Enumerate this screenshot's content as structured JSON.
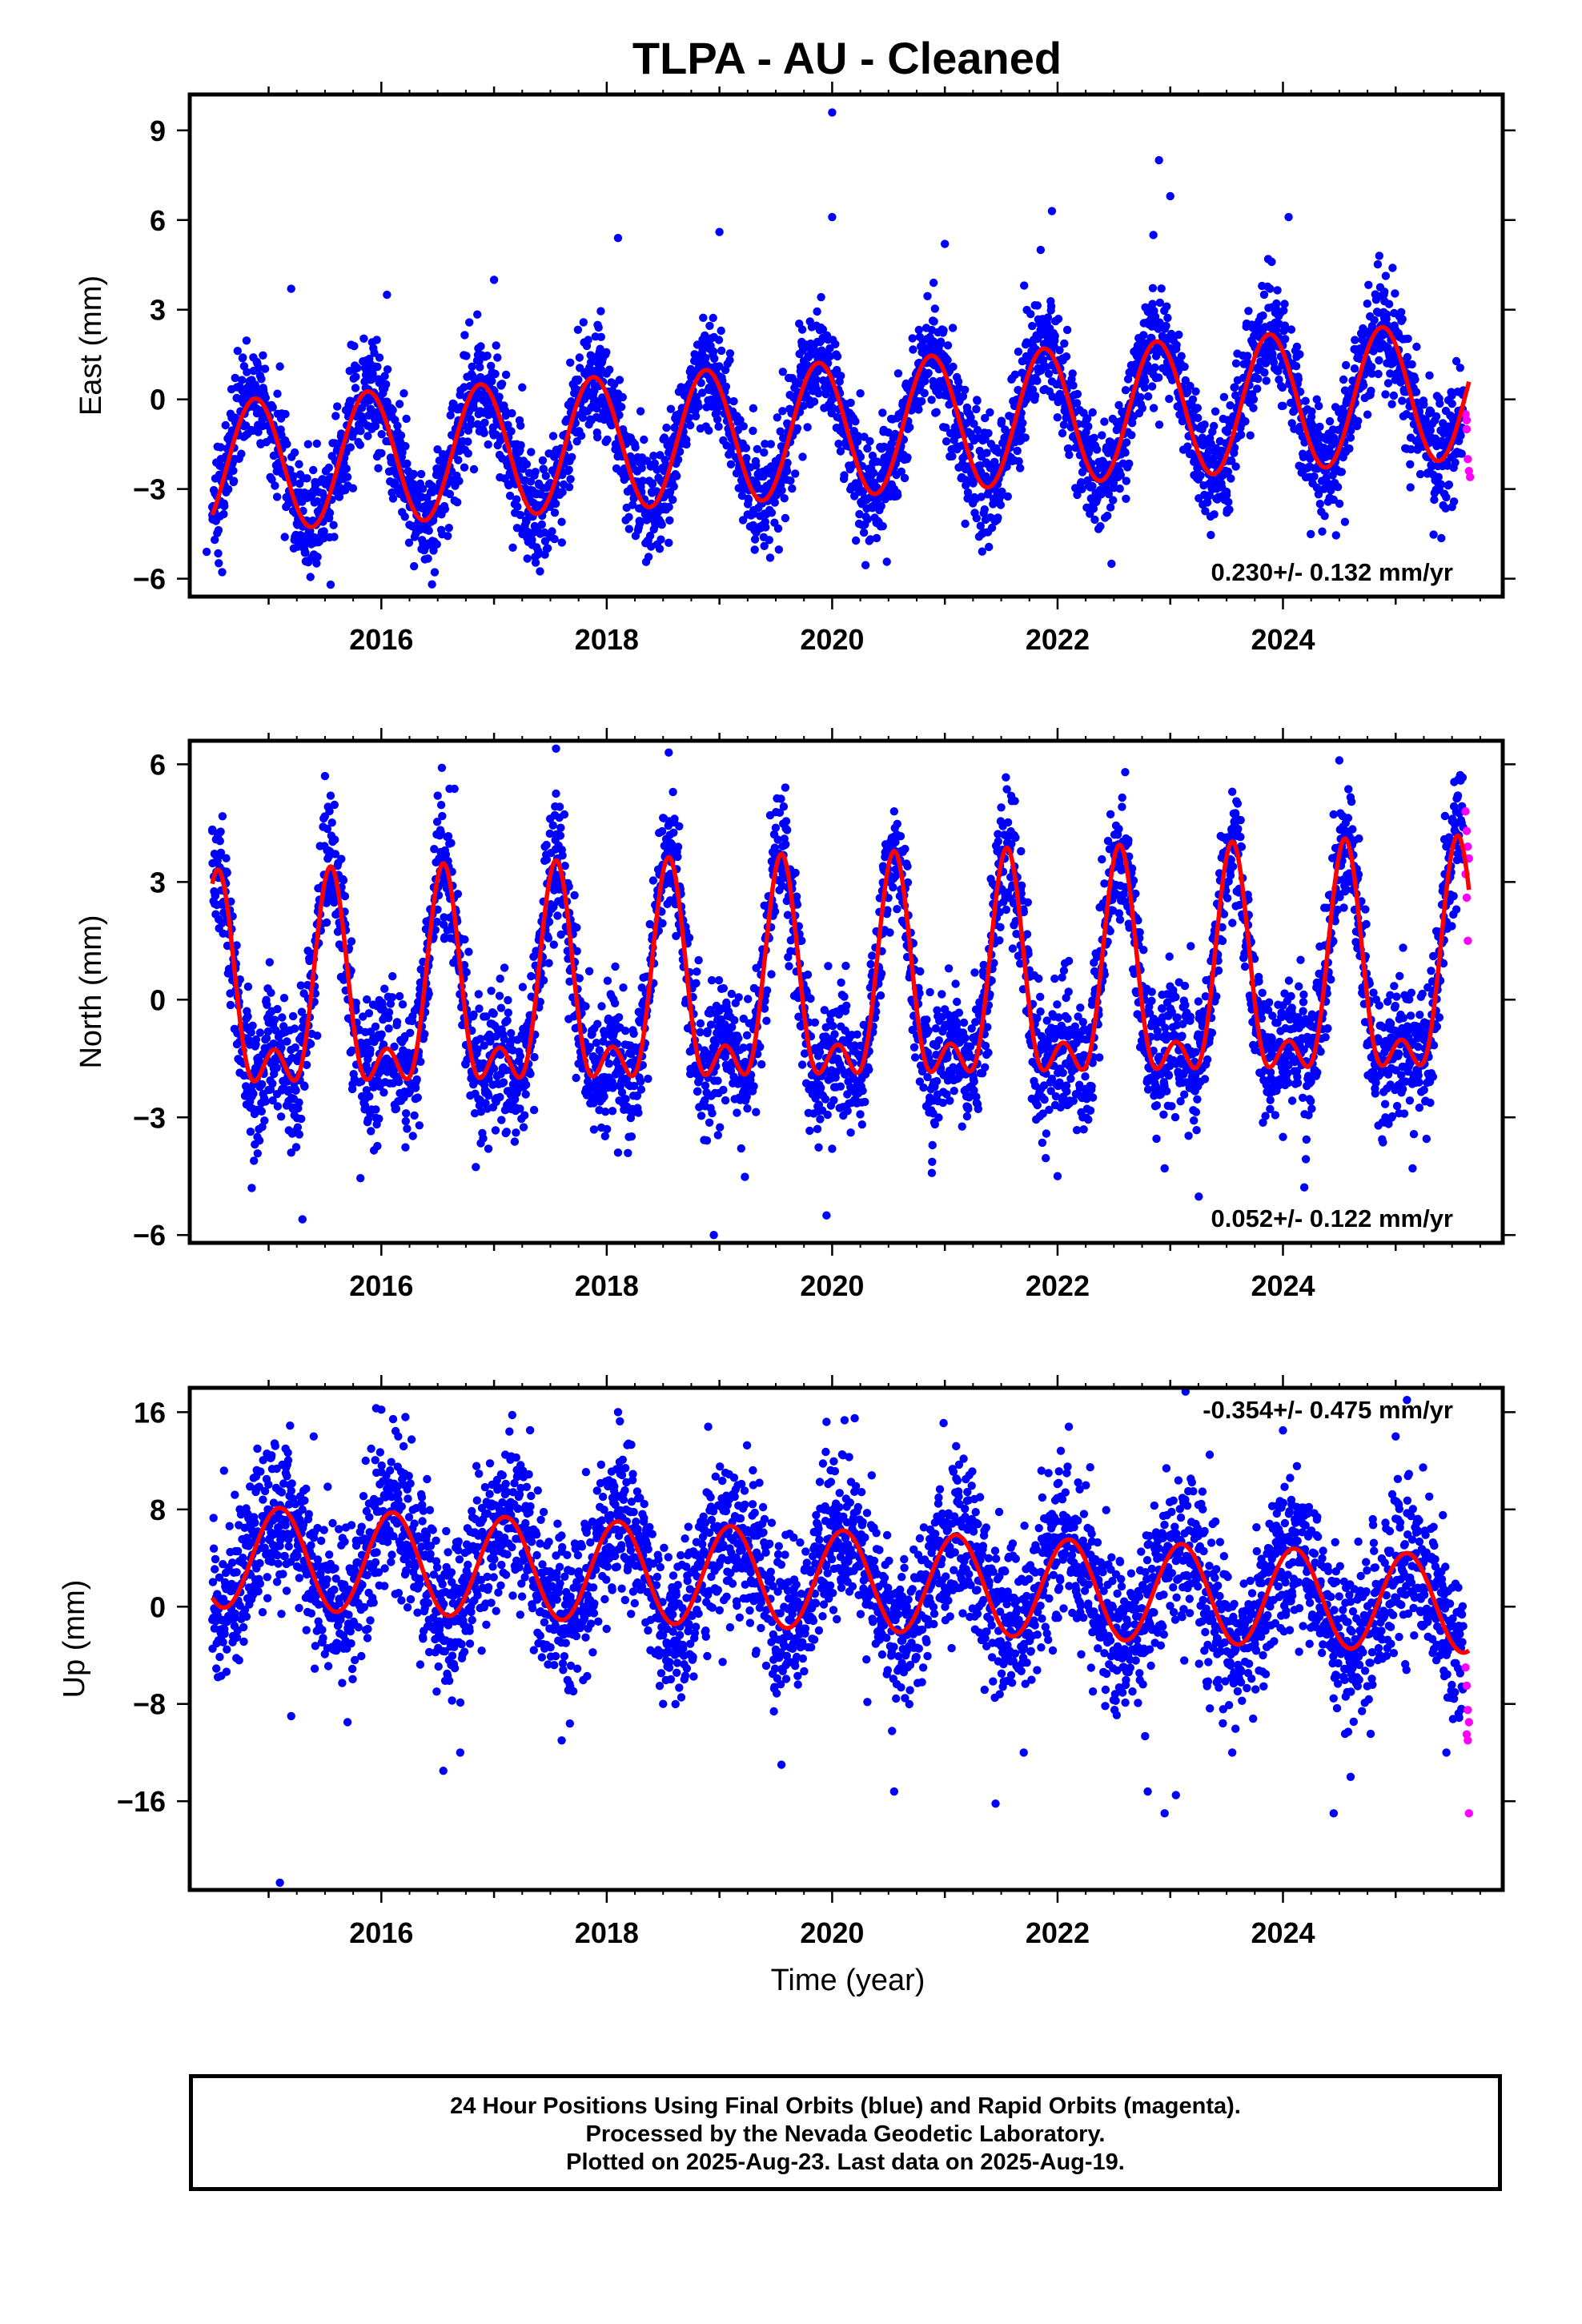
{
  "title": "TLPA  - AU - Cleaned",
  "xlabel": "Time (year)",
  "footer": {
    "line1": "24 Hour Positions Using Final Orbits (blue) and Rapid Orbits (magenta).",
    "line2": "Processed by the Nevada Geodetic Laboratory.",
    "line3": "Plotted on 2025-Aug-23. Last data on 2025-Aug-19."
  },
  "colors": {
    "final_orbits": "#0000ff",
    "rapid_orbits": "#ff00ff",
    "model_fit": "#ff0000",
    "frame": "#000000"
  },
  "chart_data": [
    {
      "type": "scatter",
      "panel": "east",
      "ylabel": "East (mm)",
      "xlim": [
        2014.3,
        2025.95
      ],
      "ylim": [
        -6.6,
        10.2
      ],
      "xticks": [
        2016,
        2018,
        2020,
        2022,
        2024
      ],
      "yticks": [
        -6,
        -3,
        0,
        3,
        6,
        9
      ],
      "rate": "0.230+/- 0.132 mm/yr",
      "rate_position": "bottom-right",
      "fit": {
        "mean_offset": -1.0,
        "trend": 0.23,
        "amp_start": 2.2,
        "amp_end": 2.3,
        "annual_phase_peak": 0.88,
        "semiannual_amp": 0.0,
        "t_start": 2014.5,
        "t_end": 2025.65,
        "end_value": 0.2
      },
      "scatter_sigma": 0.9,
      "final_points": [
        {
          "x": 2014.45,
          "y": -5.1
        },
        {
          "x": 2014.5,
          "y": -3.6
        },
        {
          "x": 2014.6,
          "y": -2.8
        },
        {
          "x": 2014.75,
          "y": -0.4
        },
        {
          "x": 2014.9,
          "y": 1.2
        },
        {
          "x": 2015.1,
          "y": 1.1
        },
        {
          "x": 2015.2,
          "y": 3.7
        },
        {
          "x": 2015.35,
          "y": -1.5
        },
        {
          "x": 2015.5,
          "y": -3.6
        },
        {
          "x": 2015.55,
          "y": -6.2
        },
        {
          "x": 2015.7,
          "y": -2.6
        },
        {
          "x": 2015.9,
          "y": 1.2
        },
        {
          "x": 2016.05,
          "y": 3.5
        },
        {
          "x": 2016.2,
          "y": 0.2
        },
        {
          "x": 2016.45,
          "y": -2.9
        },
        {
          "x": 2016.6,
          "y": -4.3
        },
        {
          "x": 2016.85,
          "y": 1.3
        },
        {
          "x": 2017.0,
          "y": 4.0
        },
        {
          "x": 2017.25,
          "y": 0.4
        },
        {
          "x": 2017.5,
          "y": -2.8
        },
        {
          "x": 2017.6,
          "y": -4.1
        },
        {
          "x": 2017.9,
          "y": 2.1
        },
        {
          "x": 2018.1,
          "y": 5.4
        },
        {
          "x": 2018.3,
          "y": -0.4
        },
        {
          "x": 2018.5,
          "y": -3.1
        },
        {
          "x": 2018.55,
          "y": -4.8
        },
        {
          "x": 2018.85,
          "y": 2.0
        },
        {
          "x": 2019.0,
          "y": 5.6
        },
        {
          "x": 2019.3,
          "y": -0.3
        },
        {
          "x": 2019.45,
          "y": -5.3
        },
        {
          "x": 2019.6,
          "y": -2.4
        },
        {
          "x": 2019.9,
          "y": 2.4
        },
        {
          "x": 2020.0,
          "y": 9.6
        },
        {
          "x": 2020.0,
          "y": 6.1
        },
        {
          "x": 2020.25,
          "y": 0.2
        },
        {
          "x": 2020.5,
          "y": -2.4
        },
        {
          "x": 2020.9,
          "y": 3.9
        },
        {
          "x": 2021.0,
          "y": 5.2
        },
        {
          "x": 2021.45,
          "y": -2.6
        },
        {
          "x": 2021.85,
          "y": 5.0
        },
        {
          "x": 2021.95,
          "y": 6.3
        },
        {
          "x": 2022.45,
          "y": -1.8
        },
        {
          "x": 2022.85,
          "y": 5.5
        },
        {
          "x": 2022.9,
          "y": 8.0
        },
        {
          "x": 2023.0,
          "y": 6.8
        },
        {
          "x": 2023.5,
          "y": -3.2
        },
        {
          "x": 2023.9,
          "y": 4.6
        },
        {
          "x": 2024.05,
          "y": 6.1
        },
        {
          "x": 2024.3,
          "y": 0.0
        },
        {
          "x": 2024.55,
          "y": -4.1
        },
        {
          "x": 2024.9,
          "y": 3.6
        },
        {
          "x": 2025.3,
          "y": 0.8
        },
        {
          "x": 2025.5,
          "y": -3.6
        },
        {
          "x": 2025.6,
          "y": 0.3
        }
      ],
      "rapid_points": [
        {
          "x": 2025.62,
          "y": -0.5
        },
        {
          "x": 2025.63,
          "y": -1.0
        },
        {
          "x": 2025.64,
          "y": -2.0
        },
        {
          "x": 2025.65,
          "y": -2.4
        },
        {
          "x": 2025.66,
          "y": -2.6
        },
        {
          "x": 2025.63,
          "y": -0.7
        }
      ]
    },
    {
      "type": "scatter",
      "panel": "north",
      "ylabel": "North (mm)",
      "xlim": [
        2014.3,
        2025.95
      ],
      "ylim": [
        -6.2,
        6.6
      ],
      "xticks": [
        2016,
        2018,
        2020,
        2022,
        2024
      ],
      "yticks": [
        -6,
        -3,
        0,
        3,
        6
      ],
      "rate": "0.052+/- 0.122 mm/yr",
      "rate_position": "bottom-right",
      "fit": {
        "mean_offset": 0.0,
        "trend": 0.052,
        "amp_start": 2.3,
        "amp_end": 2.6,
        "annual_phase_peak": 0.55,
        "semiannual_amp": 1.3,
        "t_start": 2014.5,
        "t_end": 2025.65,
        "end_value": 2.7
      },
      "scatter_sigma": 0.85,
      "final_points": [
        {
          "x": 2014.5,
          "y": 4.3
        },
        {
          "x": 2014.7,
          "y": 1.2
        },
        {
          "x": 2014.85,
          "y": -4.8
        },
        {
          "x": 2014.9,
          "y": -3.5
        },
        {
          "x": 2015.2,
          "y": -3.9
        },
        {
          "x": 2015.3,
          "y": -5.6
        },
        {
          "x": 2015.5,
          "y": 5.7
        },
        {
          "x": 2015.55,
          "y": 5.2
        },
        {
          "x": 2015.9,
          "y": -2.9
        },
        {
          "x": 2016.5,
          "y": 5.2
        },
        {
          "x": 2016.95,
          "y": -3.8
        },
        {
          "x": 2017.55,
          "y": 6.4
        },
        {
          "x": 2018.1,
          "y": -3.9
        },
        {
          "x": 2018.55,
          "y": 6.3
        },
        {
          "x": 2018.95,
          "y": -6.0
        },
        {
          "x": 2019.45,
          "y": 4.7
        },
        {
          "x": 2019.95,
          "y": -5.5
        },
        {
          "x": 2020.0,
          "y": -3.8
        },
        {
          "x": 2020.55,
          "y": 4.8
        },
        {
          "x": 2021.5,
          "y": 4.9
        },
        {
          "x": 2022.0,
          "y": -4.5
        },
        {
          "x": 2022.6,
          "y": 5.8
        },
        {
          "x": 2022.95,
          "y": -4.3
        },
        {
          "x": 2023.55,
          "y": 5.3
        },
        {
          "x": 2024.0,
          "y": -3.5
        },
        {
          "x": 2024.5,
          "y": 6.1
        },
        {
          "x": 2025.15,
          "y": -4.3
        },
        {
          "x": 2025.55,
          "y": 5.2
        }
      ],
      "rapid_points": [
        {
          "x": 2025.62,
          "y": 4.8
        },
        {
          "x": 2025.63,
          "y": 4.3
        },
        {
          "x": 2025.64,
          "y": 3.9
        },
        {
          "x": 2025.65,
          "y": 3.6
        },
        {
          "x": 2025.63,
          "y": 2.6
        },
        {
          "x": 2025.64,
          "y": 1.5
        },
        {
          "x": 2025.62,
          "y": 3.2
        }
      ]
    },
    {
      "type": "scatter",
      "panel": "up",
      "ylabel": "Up (mm)",
      "xlim": [
        2014.3,
        2025.95
      ],
      "ylim": [
        -23.3,
        18.0
      ],
      "xticks": [
        2016,
        2018,
        2020,
        2022,
        2024
      ],
      "yticks": [
        -16,
        -8,
        0,
        8,
        16
      ],
      "rate": "-0.354+/- 0.475 mm/yr",
      "rate_position": "top-right",
      "fit": {
        "mean_offset": 2.2,
        "trend": -0.354,
        "amp_start": 4.2,
        "amp_end": 4.0,
        "annual_phase_peak": 0.1,
        "semiannual_amp": 0.0,
        "t_start": 2014.5,
        "t_end": 2025.65,
        "end_value": -5.5
      },
      "scatter_sigma": 3.2,
      "final_points": [
        {
          "x": 2014.55,
          "y": -5.8
        },
        {
          "x": 2014.7,
          "y": 9.2
        },
        {
          "x": 2014.9,
          "y": 13.0
        },
        {
          "x": 2015.1,
          "y": -22.7
        },
        {
          "x": 2015.15,
          "y": 13.0
        },
        {
          "x": 2015.2,
          "y": -9.0
        },
        {
          "x": 2015.4,
          "y": 14.0
        },
        {
          "x": 2015.7,
          "y": -9.5
        },
        {
          "x": 2016.0,
          "y": 16.2
        },
        {
          "x": 2016.15,
          "y": 14.0
        },
        {
          "x": 2016.55,
          "y": -13.5
        },
        {
          "x": 2016.7,
          "y": -12.0
        },
        {
          "x": 2017.1,
          "y": 12.5
        },
        {
          "x": 2017.6,
          "y": -11.0
        },
        {
          "x": 2018.1,
          "y": 16.0
        },
        {
          "x": 2018.5,
          "y": -8.0
        },
        {
          "x": 2018.9,
          "y": 14.8
        },
        {
          "x": 2019.3,
          "y": 10.0
        },
        {
          "x": 2019.55,
          "y": -13.0
        },
        {
          "x": 2019.95,
          "y": 15.2
        },
        {
          "x": 2020.2,
          "y": 15.5
        },
        {
          "x": 2020.55,
          "y": -15.2
        },
        {
          "x": 2021.1,
          "y": 13.2
        },
        {
          "x": 2021.45,
          "y": -16.2
        },
        {
          "x": 2021.7,
          "y": -12.0
        },
        {
          "x": 2022.1,
          "y": 14.8
        },
        {
          "x": 2022.8,
          "y": -15.2
        },
        {
          "x": 2022.95,
          "y": -17.0
        },
        {
          "x": 2023.05,
          "y": -15.5
        },
        {
          "x": 2023.35,
          "y": 12.5
        },
        {
          "x": 2023.55,
          "y": -12.0
        },
        {
          "x": 2024.0,
          "y": 14.5
        },
        {
          "x": 2024.45,
          "y": -17.0
        },
        {
          "x": 2024.6,
          "y": -14.0
        },
        {
          "x": 2025.0,
          "y": 14.0
        },
        {
          "x": 2025.1,
          "y": 17.0
        },
        {
          "x": 2025.45,
          "y": -12.0
        }
      ],
      "rapid_points": [
        {
          "x": 2025.62,
          "y": -5.0
        },
        {
          "x": 2025.63,
          "y": -6.5
        },
        {
          "x": 2025.64,
          "y": -8.5
        },
        {
          "x": 2025.65,
          "y": -9.5
        },
        {
          "x": 2025.63,
          "y": -10.5
        },
        {
          "x": 2025.64,
          "y": -11.0
        },
        {
          "x": 2025.65,
          "y": -17.0
        }
      ]
    }
  ]
}
